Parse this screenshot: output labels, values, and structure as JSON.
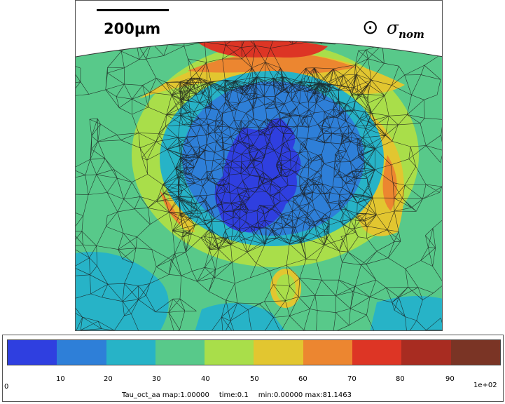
{
  "viewer": {
    "scale_bar_label": "200μm",
    "stress_symbol": "⊙",
    "stress_label": "σ",
    "stress_subscript": "nom"
  },
  "legend": {
    "colors": [
      "#2f3fe0",
      "#2e7fd8",
      "#27b3c7",
      "#58c98a",
      "#a9de4a",
      "#e2c630",
      "#ec8630",
      "#dd3525",
      "#a82c21",
      "#7a3425"
    ],
    "ticks": [
      "0",
      "10",
      "20",
      "30",
      "40",
      "50",
      "60",
      "70",
      "80",
      "90",
      "1e+02"
    ],
    "field_name": "Tau_oct_aa map:1.00000",
    "time": "time:0.1",
    "range": "min:0.00000 max:81.1463"
  }
}
